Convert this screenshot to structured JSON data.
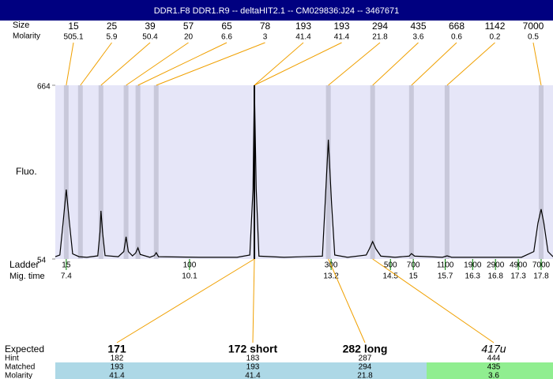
{
  "chart_data": {
    "type": "line",
    "title": "DDR1.F8 DDR1.R9 -- deltaHIT2.1 -- CM029836:J24 -- 3467671",
    "y_label": "Fluo.",
    "xlim": [
      7.16,
      18.06
    ],
    "ylim": [
      54,
      664
    ],
    "yticks": [
      54,
      664
    ],
    "plot_background": "#e6e6f8",
    "line_color": "#f0a000",
    "trace": {
      "color": "#000000",
      "x": [
        7.16,
        7.26,
        7.33,
        7.4,
        7.47,
        7.54,
        7.68,
        7.85,
        8.09,
        8.14,
        8.16,
        8.2,
        8.25,
        8.54,
        8.66,
        8.71,
        8.76,
        8.85,
        8.92,
        8.97,
        9.02,
        9.23,
        9.33,
        9.37,
        9.42,
        10.31,
        11.14,
        11.42,
        11.49,
        11.52,
        11.56,
        11.62,
        12.17,
        13.01,
        13.07,
        13.14,
        13.21,
        13.28,
        13.56,
        13.97,
        14.04,
        14.11,
        14.18,
        14.29,
        14.6,
        14.91,
        14.96,
        15.03,
        15.64,
        15.74,
        15.84,
        17.37,
        17.64,
        17.73,
        17.8,
        17.86,
        17.95,
        18.06
      ],
      "values": [
        62,
        68,
        180,
        298,
        180,
        72,
        62,
        60,
        65,
        150,
        223,
        140,
        66,
        62,
        80,
        132,
        80,
        65,
        75,
        93,
        70,
        60,
        66,
        76,
        62,
        60,
        60,
        68,
        300,
        664,
        300,
        64,
        60,
        64,
        250,
        473,
        250,
        68,
        60,
        68,
        90,
        115,
        90,
        64,
        60,
        64,
        73,
        64,
        60,
        65,
        60,
        60,
        80,
        180,
        229,
        180,
        80,
        62
      ]
    },
    "peaks": {
      "row_labels": [
        "Size",
        "Molarity"
      ],
      "size": [
        15,
        25,
        39,
        57,
        65,
        78,
        193,
        193,
        294,
        435,
        668,
        1142,
        7000
      ],
      "molarity": [
        505.1,
        5.9,
        50.4,
        20,
        6.6,
        3,
        41.4,
        41.4,
        21.8,
        3.6,
        0.6,
        0.2,
        0.5
      ],
      "mig_time": [
        7.4,
        7.71,
        8.16,
        8.71,
        8.97,
        9.37,
        11.52,
        11.52,
        13.14,
        14.11,
        14.96,
        15.74,
        17.8
      ],
      "band_colors": [
        "#c8c8da",
        "#c8c8da",
        "#c8c8da",
        "#c8c8da",
        "#c8c8da",
        "#c8c8da",
        "#000000",
        "#000000",
        "#c8c8da",
        "#c8c8da",
        "#c8c8da",
        "#c8c8da",
        "#c8c8da"
      ]
    },
    "ladder": {
      "row_labels": [
        "Ladder",
        "Mig. time"
      ],
      "size": [
        15,
        100,
        300,
        500,
        700,
        1100,
        1900,
        2900,
        4900,
        7000
      ],
      "mig_time": [
        7.4,
        10.1,
        13.2,
        14.5,
        15,
        15.7,
        16.3,
        16.8,
        17.3,
        17.8
      ],
      "color": "#008000"
    },
    "results": {
      "row_labels": [
        "Expected",
        "Hint",
        "Matched",
        "Molarity"
      ],
      "expected": [
        "171",
        "172 short",
        "282 long",
        "417u"
      ],
      "expected_italic": [
        false,
        false,
        false,
        true
      ],
      "hint": [
        182,
        183,
        287,
        444
      ],
      "matched": [
        193,
        193,
        294,
        435
      ],
      "molarity": [
        41.4,
        41.4,
        21.8,
        3.6
      ],
      "cell_colors": [
        "#add8e6",
        "#add8e6",
        "#add8e6",
        "#90ee90"
      ]
    }
  }
}
